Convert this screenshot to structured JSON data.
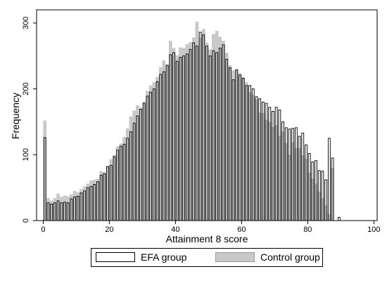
{
  "chart_data": {
    "type": "bar",
    "xlabel": "Attainment 8 score",
    "ylabel": "Frequency",
    "xlim": [
      -2,
      101
    ],
    "ylim": [
      0,
      320
    ],
    "xticks": [
      0,
      20,
      40,
      60,
      80,
      100
    ],
    "yticks": [
      0,
      100,
      200,
      300
    ],
    "bin_width": 1,
    "grid": false,
    "legend_position": "bottom",
    "x": [
      0,
      1,
      2,
      3,
      4,
      5,
      6,
      7,
      8,
      9,
      10,
      11,
      12,
      13,
      14,
      15,
      16,
      17,
      18,
      19,
      20,
      21,
      22,
      23,
      24,
      25,
      26,
      27,
      28,
      29,
      30,
      31,
      32,
      33,
      34,
      35,
      36,
      37,
      38,
      39,
      40,
      41,
      42,
      43,
      44,
      45,
      46,
      47,
      48,
      49,
      50,
      51,
      52,
      53,
      54,
      55,
      56,
      57,
      58,
      59,
      60,
      61,
      62,
      63,
      64,
      65,
      66,
      67,
      68,
      69,
      70,
      71,
      72,
      73,
      74,
      75,
      76,
      77,
      78,
      79,
      80,
      81,
      82,
      83,
      84,
      85,
      86,
      87,
      88,
      89
    ],
    "series": [
      {
        "name": "Control group",
        "color": "#c8c8c8",
        "values": [
          152,
          34,
          30,
          34,
          41,
          36,
          38,
          37,
          40,
          45,
          43,
          48,
          52,
          56,
          61,
          62,
          63,
          75,
          74,
          83,
          93,
          100,
          113,
          117,
          127,
          140,
          158,
          167,
          175,
          172,
          181,
          197,
          205,
          210,
          218,
          233,
          243,
          236,
          273,
          262,
          251,
          263,
          262,
          268,
          271,
          278,
          302,
          278,
          291,
          270,
          260,
          283,
          288,
          279,
          273,
          255,
          236,
          228,
          229,
          224,
          218,
          210,
          195,
          191,
          184,
          164,
          163,
          153,
          150,
          142,
          145,
          129,
          135,
          118,
          100,
          119,
          110,
          110,
          99,
          94,
          73,
          64,
          56,
          44,
          34,
          23,
          10,
          80,
          0,
          0
        ]
      },
      {
        "name": "EFA group",
        "color": "#ffffff",
        "values": [
          126,
          27,
          25,
          27,
          30,
          27,
          28,
          27,
          33,
          36,
          37,
          42,
          45,
          50,
          52,
          55,
          59,
          69,
          71,
          82,
          84,
          97,
          107,
          113,
          116,
          125,
          135,
          148,
          159,
          169,
          178,
          189,
          195,
          200,
          211,
          222,
          226,
          236,
          252,
          255,
          242,
          248,
          250,
          253,
          260,
          270,
          265,
          286,
          282,
          265,
          250,
          258,
          255,
          262,
          267,
          245,
          232,
          214,
          229,
          221,
          216,
          205,
          205,
          200,
          188,
          185,
          180,
          178,
          172,
          166,
          172,
          168,
          150,
          141,
          139,
          140,
          141,
          128,
          133,
          115,
          102,
          89,
          91,
          76,
          75,
          62,
          125,
          95,
          0,
          5
        ]
      }
    ]
  },
  "legend": {
    "items": [
      "EFA group",
      "Control group"
    ]
  }
}
